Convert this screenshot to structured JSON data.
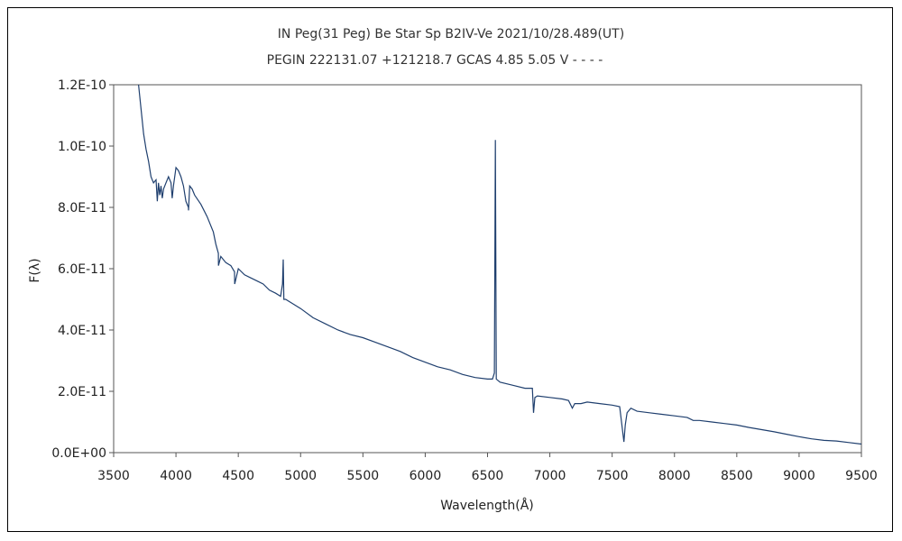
{
  "chart_data": {
    "type": "line",
    "title_line1": "IN Peg(31 Peg)    Be Star    Sp B2IV-Ve    2021/10/28.489(UT)",
    "title_line2": "PEGIN 222131.07 +121218.7 GCAS 4.85 5.05 V - - - -",
    "xlabel": "Wavelength(Å)",
    "ylabel": "F(λ)",
    "xlim": [
      3500,
      9500
    ],
    "ylim": [
      0,
      1.2e-10
    ],
    "x_ticks": [
      3500,
      4000,
      4500,
      5000,
      5500,
      6000,
      6500,
      7000,
      7500,
      8000,
      8500,
      9000,
      9500
    ],
    "y_ticks": [
      0,
      2e-11,
      4e-11,
      6e-11,
      8e-11,
      1e-10,
      1.2e-10
    ],
    "y_tick_labels": [
      "0.0E+00",
      "2.0E-11",
      "4.0E-11",
      "6.0E-11",
      "8.0E-11",
      "1.0E-10",
      "1.2E-10"
    ],
    "x_tick_labels": [
      "3500",
      "4000",
      "4500",
      "5000",
      "5500",
      "6000",
      "6500",
      "7000",
      "7500",
      "8000",
      "8500",
      "9000",
      "9500"
    ],
    "grid": false,
    "line_color": "#1f3f6e",
    "series": [
      {
        "x": [
          3700,
          3720,
          3740,
          3760,
          3780,
          3800,
          3820,
          3840,
          3850,
          3860,
          3870,
          3880,
          3890,
          3900,
          3920,
          3940,
          3960,
          3970,
          3980,
          4000,
          4020,
          4040,
          4060,
          4080,
          4100,
          4101,
          4110,
          4130,
          4150,
          4200,
          4250,
          4300,
          4320,
          4340,
          4341,
          4360,
          4400,
          4440,
          4470,
          4471,
          4500,
          4550,
          4600,
          4650,
          4700,
          4750,
          4800,
          4840,
          4855,
          4861,
          4866,
          4880,
          4920,
          5000,
          5100,
          5200,
          5300,
          5400,
          5500,
          5600,
          5700,
          5800,
          5900,
          6000,
          6100,
          6200,
          6300,
          6400,
          6500,
          6540,
          6555,
          6563,
          6570,
          6600,
          6700,
          6800,
          6860,
          6869,
          6880,
          6900,
          7000,
          7100,
          7150,
          7180,
          7200,
          7250,
          7300,
          7400,
          7500,
          7560,
          7594,
          7605,
          7620,
          7650,
          7700,
          7800,
          7900,
          8000,
          8100,
          8150,
          8200,
          8300,
          8400,
          8500,
          8600,
          8700,
          8800,
          8900,
          9000,
          9100,
          9200,
          9300,
          9400,
          9500
        ],
        "y": [
          1.2e-10,
          1.12e-10,
          1.04e-10,
          9.9e-11,
          9.5e-11,
          9e-11,
          8.8e-11,
          8.9e-11,
          8.2e-11,
          8.8e-11,
          8.4e-11,
          8.7e-11,
          8.3e-11,
          8.6e-11,
          8.8e-11,
          9e-11,
          8.8e-11,
          8.3e-11,
          8.7e-11,
          9.3e-11,
          9.2e-11,
          9e-11,
          8.7e-11,
          8.2e-11,
          8e-11,
          7.9e-11,
          8.7e-11,
          8.6e-11,
          8.4e-11,
          8.1e-11,
          7.7e-11,
          7.2e-11,
          6.8e-11,
          6.5e-11,
          6.1e-11,
          6.4e-11,
          6.2e-11,
          6.1e-11,
          5.9e-11,
          5.5e-11,
          6e-11,
          5.8e-11,
          5.7e-11,
          5.6e-11,
          5.5e-11,
          5.3e-11,
          5.2e-11,
          5.1e-11,
          5.5e-11,
          6.3e-11,
          5e-11,
          5e-11,
          4.9e-11,
          4.7e-11,
          4.4e-11,
          4.2e-11,
          4e-11,
          3.85e-11,
          3.75e-11,
          3.6e-11,
          3.45e-11,
          3.3e-11,
          3.1e-11,
          2.95e-11,
          2.8e-11,
          2.7e-11,
          2.55e-11,
          2.45e-11,
          2.4e-11,
          2.4e-11,
          2.6e-11,
          1.02e-10,
          2.4e-11,
          2.3e-11,
          2.2e-11,
          2.1e-11,
          2.1e-11,
          1.3e-11,
          1.8e-11,
          1.85e-11,
          1.8e-11,
          1.75e-11,
          1.7e-11,
          1.45e-11,
          1.6e-11,
          1.6e-11,
          1.65e-11,
          1.6e-11,
          1.55e-11,
          1.5e-11,
          3.5e-12,
          9e-12,
          1.3e-11,
          1.45e-11,
          1.35e-11,
          1.3e-11,
          1.25e-11,
          1.2e-11,
          1.15e-11,
          1.05e-11,
          1.05e-11,
          1e-11,
          9.5e-12,
          9e-12,
          8.2e-12,
          7.5e-12,
          6.8e-12,
          6e-12,
          5.2e-12,
          4.5e-12,
          4e-12,
          3.8e-12,
          3.3e-12,
          2.8e-12
        ]
      }
    ]
  }
}
